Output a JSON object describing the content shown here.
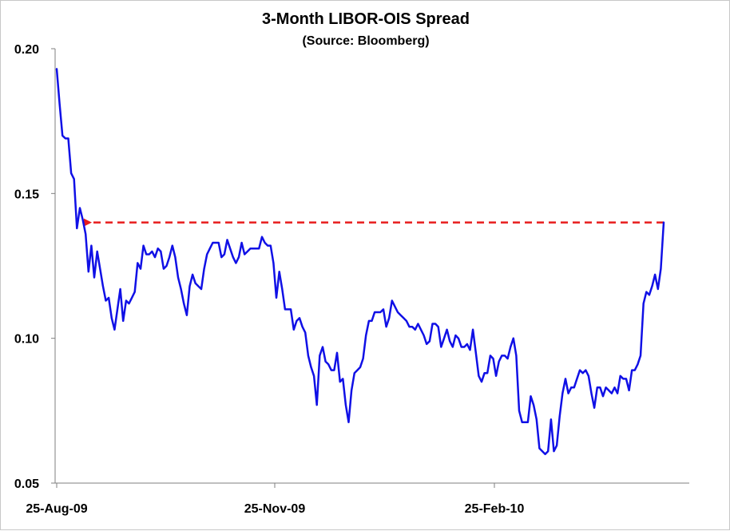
{
  "chart_data": {
    "type": "line",
    "title": "3-Month LIBOR-OIS Spread",
    "subtitle": "(Source: Bloomberg)",
    "xlabel": "",
    "ylabel": "",
    "ylim": [
      0.05,
      0.2
    ],
    "y_ticks": [
      "0.20",
      "0.15",
      "0.10",
      "0.05"
    ],
    "x_ticks": [
      "25-Aug-09",
      "25-Nov-09",
      "25-Feb-10"
    ],
    "grid": false,
    "legend": "none",
    "colors": {
      "series": "#1010e6",
      "reference": "#e81c1c",
      "axis": "#7f7f7f"
    },
    "series": [
      {
        "values": [
          0.193,
          0.181,
          0.17,
          0.169,
          0.169,
          0.157,
          0.155,
          0.138,
          0.145,
          0.141,
          0.136,
          0.123,
          0.132,
          0.121,
          0.13,
          0.124,
          0.118,
          0.113,
          0.114,
          0.107,
          0.103,
          0.11,
          0.117,
          0.106,
          0.113,
          0.112,
          0.114,
          0.116,
          0.126,
          0.124,
          0.132,
          0.129,
          0.129,
          0.13,
          0.128,
          0.131,
          0.13,
          0.124,
          0.125,
          0.128,
          0.132,
          0.128,
          0.121,
          0.117,
          0.112,
          0.108,
          0.118,
          0.122,
          0.119,
          0.118,
          0.117,
          0.124,
          0.129,
          0.131,
          0.133,
          0.133,
          0.133,
          0.128,
          0.129,
          0.134,
          0.131,
          0.128,
          0.126,
          0.128,
          0.133,
          0.129,
          0.13,
          0.131,
          0.131,
          0.131,
          0.131,
          0.135,
          0.133,
          0.132,
          0.132,
          0.126,
          0.114,
          0.123,
          0.117,
          0.11,
          0.11,
          0.11,
          0.103,
          0.106,
          0.107,
          0.104,
          0.102,
          0.094,
          0.09,
          0.087,
          0.077,
          0.094,
          0.097,
          0.092,
          0.091,
          0.089,
          0.089,
          0.095,
          0.085,
          0.086,
          0.077,
          0.071,
          0.082,
          0.088,
          0.089,
          0.09,
          0.093,
          0.101,
          0.106,
          0.106,
          0.109,
          0.109,
          0.109,
          0.11,
          0.104,
          0.107,
          0.113,
          0.111,
          0.109,
          0.108,
          0.107,
          0.106,
          0.104,
          0.104,
          0.103,
          0.105,
          0.103,
          0.101,
          0.098,
          0.099,
          0.105,
          0.105,
          0.104,
          0.097,
          0.1,
          0.103,
          0.099,
          0.097,
          0.101,
          0.1,
          0.097,
          0.097,
          0.098,
          0.096,
          0.103,
          0.095,
          0.087,
          0.085,
          0.088,
          0.088,
          0.094,
          0.093,
          0.087,
          0.092,
          0.094,
          0.094,
          0.093,
          0.097,
          0.1,
          0.094,
          0.075,
          0.071,
          0.071,
          0.071,
          0.08,
          0.077,
          0.072,
          0.062,
          0.061,
          0.06,
          0.061,
          0.072,
          0.061,
          0.063,
          0.073,
          0.081,
          0.086,
          0.081,
          0.083,
          0.083,
          0.086,
          0.089,
          0.088,
          0.089,
          0.087,
          0.081,
          0.076,
          0.083,
          0.083,
          0.08,
          0.083,
          0.082,
          0.081,
          0.083,
          0.081,
          0.087,
          0.086,
          0.086,
          0.082,
          0.089,
          0.089,
          0.091,
          0.094,
          0.112,
          0.116,
          0.115,
          0.118,
          0.122,
          0.117,
          0.124,
          0.14
        ]
      }
    ],
    "reference_line": {
      "value": 0.14,
      "style": "dashed",
      "arrow": "left"
    }
  }
}
